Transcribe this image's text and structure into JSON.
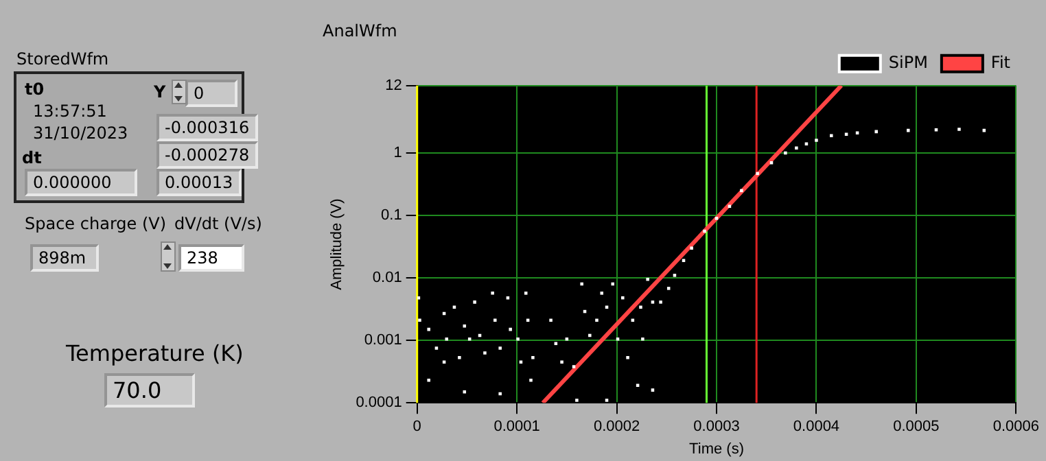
{
  "chart_data": [
    {
      "type": "other",
      "title": "StoredWfm",
      "annotations": [
        "t0",
        "13:57:51",
        "31/10/2023",
        "dt",
        "0.000000",
        "Y",
        "0",
        "-0.000316",
        "-0.000278",
        "0.00013",
        "Space charge (V)",
        "898m",
        "dV/dt (V/s)",
        "238",
        "Temperature (K)",
        "70.0"
      ]
    },
    {
      "type": "scatter",
      "title": "AnalWfm",
      "xlabel": "Time (s)",
      "ylabel": "Amplitude (V)",
      "log": "y",
      "grid": true,
      "legend": "top right",
      "marker": "square",
      "xlim": [
        0,
        0.0006
      ],
      "xticks": [
        0,
        0.0001,
        0.0002,
        0.0003,
        0.0004,
        0.0005,
        0.0006
      ],
      "ylim": [
        0.0001,
        12
      ],
      "yticks": [
        0.0001,
        0.001,
        0.01,
        0.1,
        1,
        12
      ],
      "ref_lines": [
        {
          "axis": "x",
          "value": 0,
          "color": "#ffff00"
        },
        {
          "axis": "x",
          "value": 0.00029,
          "color": "#66ff33"
        },
        {
          "axis": "x",
          "value": 0.00034,
          "color": "#dd2222"
        }
      ],
      "series": [
        {
          "name": "SiPM",
          "type": "scatter",
          "color": "#ffffff",
          "x": [
            1.5e-06,
            2.6e-06,
            1.17e-05,
            1.94e-05,
            2.71e-05,
            2.96e-05,
            3.73e-05,
            4.24e-05,
            4.75e-05,
            5.26e-05,
            5.77e-05,
            6.28e-05,
            6.79e-05,
            7.56e-05,
            7.81e-05,
            8.32e-05,
            9.09e-05,
            9.35e-05,
            0.000101,
            0.000109,
            0.000111,
            0.000116,
            0.000134,
            0.000139,
            0.000145,
            0.00015,
            0.000157,
            0.000165,
            0.000168,
            0.000173,
            0.00018,
            0.000185,
            0.00019,
            0.000196,
            0.000201,
            0.000206,
            0.000211,
            0.000216,
            0.000224,
            0.000226,
            0.000231,
            0.000236,
            0.000244,
            1.17e-05,
            4.75e-05,
            8.32e-05,
            0.000114,
            0.00016,
            0.00019,
            0.000221,
            0.000236,
            2.71e-05,
            0.000104,
            0.000252,
            0.000267,
            0.000288,
            0.000313,
            0.000341,
            0.000369,
            0.00039,
            0.000415,
            0.000441,
            0.000492,
            0.000543,
            0.000568,
            0.000258,
            0.000275,
            0.0003,
            0.000325,
            0.000355,
            0.00038,
            0.0004,
            0.00043,
            0.00046,
            0.00052
          ],
          "values": [
            0.0048,
            0.0021,
            0.0015,
            0.00075,
            0.0027,
            0.00105,
            0.0034,
            0.00053,
            0.0017,
            0.00105,
            0.0041,
            0.0012,
            0.00063,
            0.0057,
            0.0021,
            0.00075,
            0.0048,
            0.0015,
            0.00105,
            0.0057,
            0.0021,
            0.00053,
            0.0021,
            0.00089,
            0.00045,
            0.00105,
            0.00038,
            0.008,
            0.0029,
            0.0012,
            0.0021,
            0.0057,
            0.0034,
            0.008,
            0.00105,
            0.0048,
            0.00053,
            0.0021,
            0.0034,
            0.00105,
            0.0095,
            0.0041,
            0.0041,
            0.00023,
            0.00015,
            0.00014,
            0.00023,
            0.00011,
            0.00011,
            0.00019,
            0.00016,
            0.00045,
            0.00045,
            0.0068,
            0.019,
            0.056,
            0.14,
            0.47,
            1.0,
            1.4,
            1.9,
            2.1,
            2.3,
            2.4,
            2.3,
            0.011,
            0.03,
            0.09,
            0.25,
            0.7,
            1.2,
            1.6,
            2.0,
            2.2,
            2.35
          ]
        },
        {
          "name": "Fit",
          "type": "line",
          "marker": "none",
          "color": "#ff4444",
          "x": [
            0.000126,
            0.000425
          ],
          "values": [
            0.0001,
            12
          ]
        }
      ]
    }
  ]
}
